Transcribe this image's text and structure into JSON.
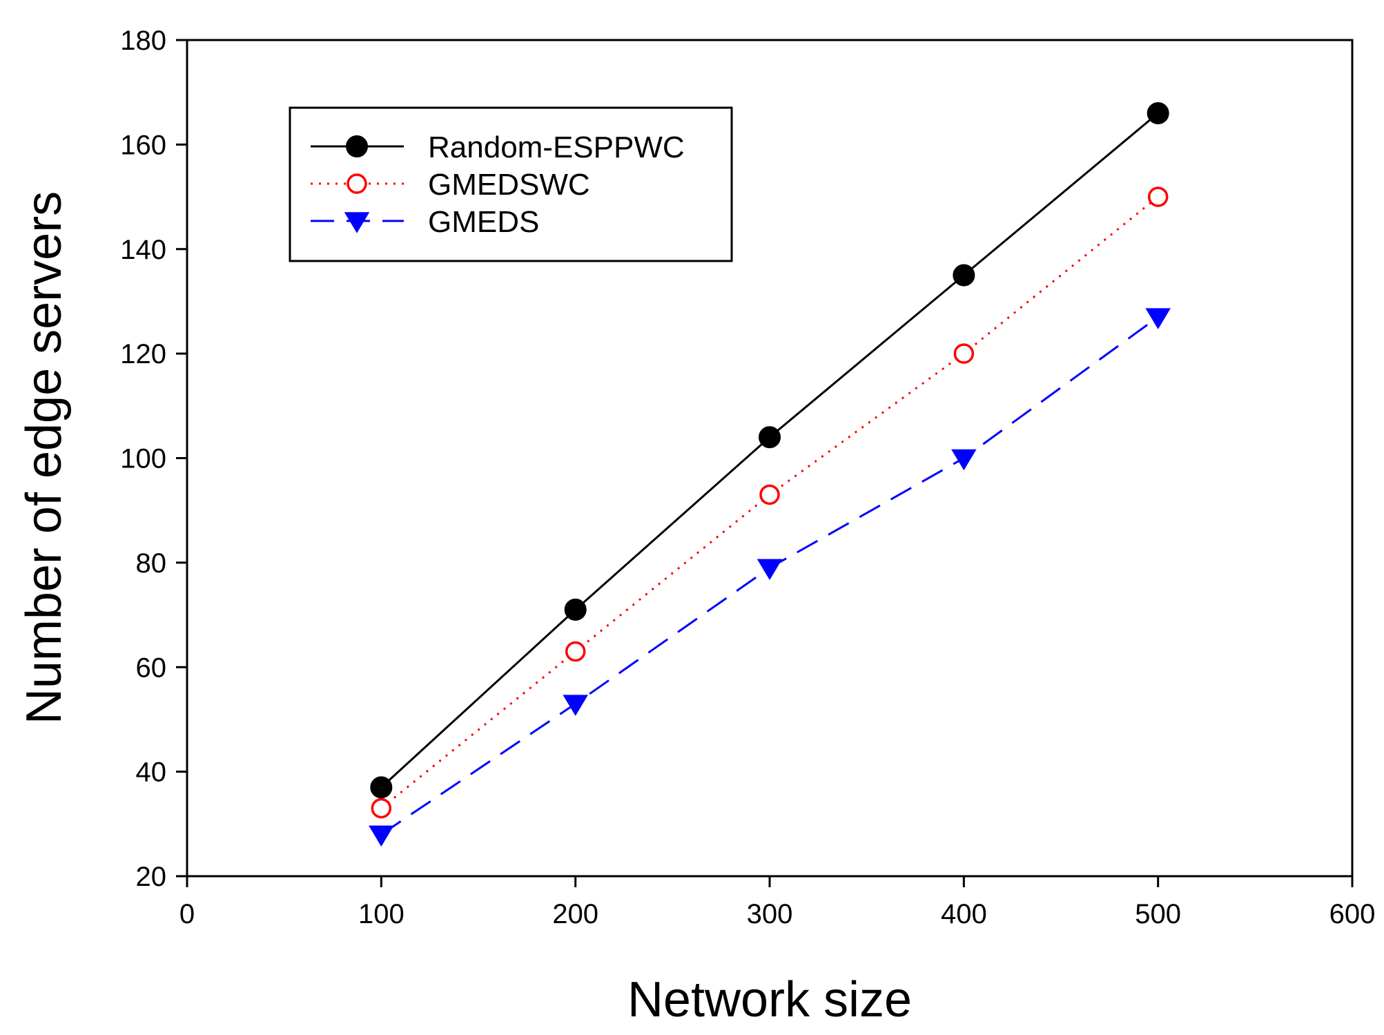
{
  "chart_data": {
    "type": "line",
    "title": "",
    "xlabel": "Network size",
    "ylabel": "Number of edge servers",
    "xlim": [
      0,
      600
    ],
    "ylim": [
      20,
      180
    ],
    "xticks": [
      0,
      100,
      200,
      300,
      400,
      500,
      600
    ],
    "yticks": [
      20,
      40,
      60,
      80,
      100,
      120,
      140,
      160,
      180
    ],
    "grid": false,
    "legend_position": "top-left",
    "x": [
      100,
      200,
      300,
      400,
      500
    ],
    "series": [
      {
        "name": "Random-ESPPWC",
        "values": [
          37,
          71,
          104,
          135,
          166
        ],
        "color": "#000000",
        "line_style": "solid",
        "marker": "filled-circle"
      },
      {
        "name": "GMEDSWC",
        "values": [
          33,
          63,
          93,
          120,
          150
        ],
        "color": "#ff0000",
        "line_style": "dotted",
        "marker": "open-circle"
      },
      {
        "name": "GMEDS",
        "values": [
          28,
          53,
          79,
          100,
          127
        ],
        "color": "#0000ff",
        "line_style": "dashed",
        "marker": "filled-triangle-down"
      }
    ]
  }
}
